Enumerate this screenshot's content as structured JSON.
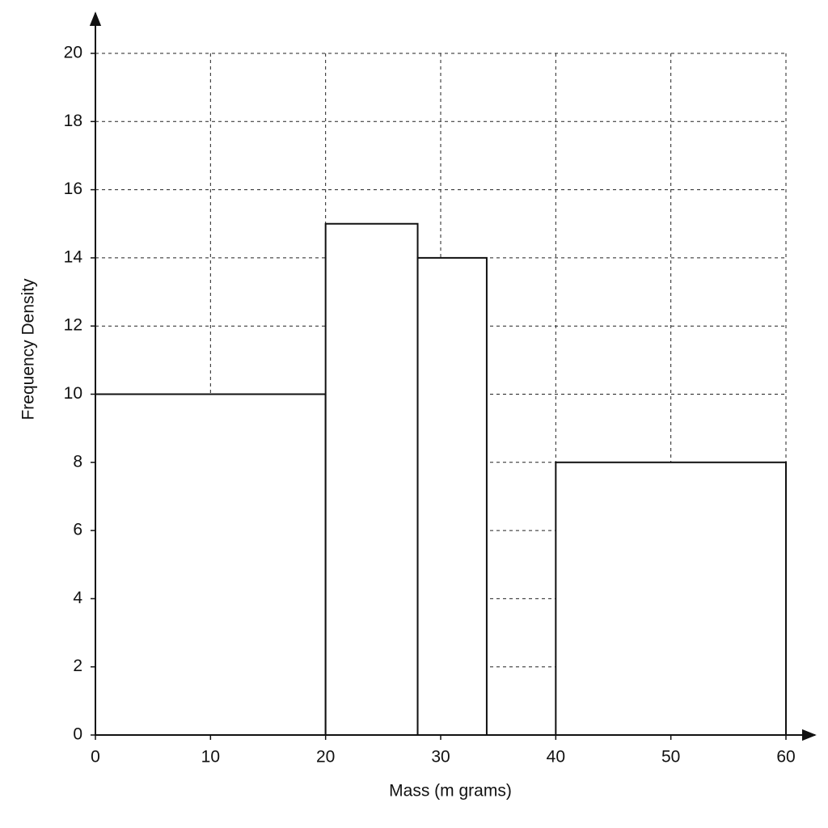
{
  "chart_data": {
    "type": "histogram",
    "xlabel": "Mass (m grams)",
    "ylabel": "Frequency Density",
    "bins": [
      0,
      20,
      28,
      34,
      40,
      60
    ],
    "values": [
      10,
      15,
      14,
      0,
      8
    ],
    "color": "#ffffff",
    "xlim": [
      0,
      60
    ],
    "xticks": [
      0,
      10,
      20,
      30,
      40,
      50,
      60
    ],
    "ylim": [
      0,
      20
    ],
    "yticks": [
      0,
      2,
      4,
      6,
      8,
      10,
      12,
      14,
      16,
      18,
      20
    ],
    "grid": true
  }
}
